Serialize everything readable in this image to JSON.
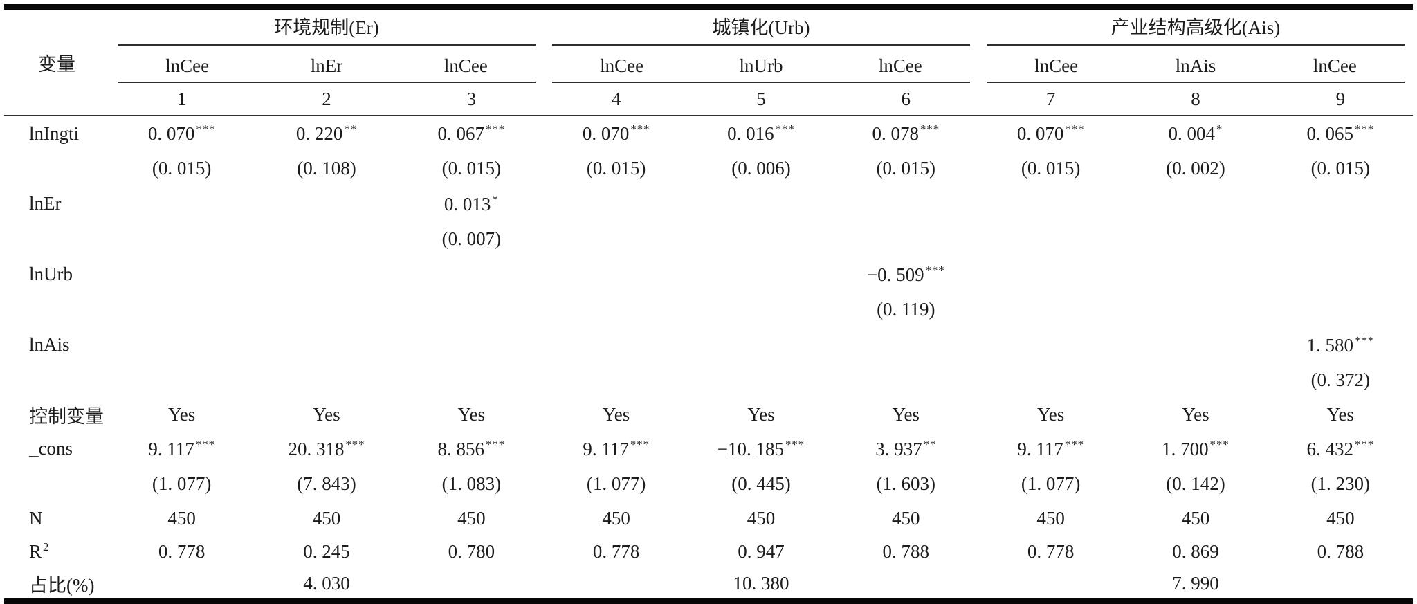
{
  "table": {
    "stub_header": "变量",
    "groups": [
      {
        "label": "环境规制(Er)",
        "dep_vars": [
          "lnCee",
          "lnEr",
          "lnCee"
        ]
      },
      {
        "label": "城镇化(Urb)",
        "dep_vars": [
          "lnCee",
          "lnUrb",
          "lnCee"
        ]
      },
      {
        "label": "产业结构高级化(Ais)",
        "dep_vars": [
          "lnCee",
          "lnAis",
          "lnCee"
        ]
      }
    ],
    "model_numbers": [
      "1",
      "2",
      "3",
      "4",
      "5",
      "6",
      "7",
      "8",
      "9"
    ],
    "rows": [
      {
        "label": "lnIngti",
        "type": "coef",
        "cells": [
          {
            "v": "0. 070",
            "s": "***"
          },
          {
            "v": "0. 220",
            "s": "**"
          },
          {
            "v": "0. 067",
            "s": "***"
          },
          {
            "v": "0. 070",
            "s": "***"
          },
          {
            "v": "0. 016",
            "s": "***"
          },
          {
            "v": "0. 078",
            "s": "***"
          },
          {
            "v": "0. 070",
            "s": "***"
          },
          {
            "v": "0. 004",
            "s": "*"
          },
          {
            "v": "0. 065",
            "s": "***"
          }
        ]
      },
      {
        "label": "",
        "type": "se",
        "cells": [
          {
            "v": "(0. 015)"
          },
          {
            "v": "(0. 108)"
          },
          {
            "v": "(0. 015)"
          },
          {
            "v": "(0. 015)"
          },
          {
            "v": "(0. 006)"
          },
          {
            "v": "(0. 015)"
          },
          {
            "v": "(0. 015)"
          },
          {
            "v": "(0. 002)"
          },
          {
            "v": "(0. 015)"
          }
        ]
      },
      {
        "label": "lnEr",
        "type": "coef",
        "cells": [
          {
            "v": ""
          },
          {
            "v": ""
          },
          {
            "v": "0. 013",
            "s": "*"
          },
          {
            "v": ""
          },
          {
            "v": ""
          },
          {
            "v": ""
          },
          {
            "v": ""
          },
          {
            "v": ""
          },
          {
            "v": ""
          }
        ]
      },
      {
        "label": "",
        "type": "se",
        "cells": [
          {
            "v": ""
          },
          {
            "v": ""
          },
          {
            "v": "(0. 007)"
          },
          {
            "v": ""
          },
          {
            "v": ""
          },
          {
            "v": ""
          },
          {
            "v": ""
          },
          {
            "v": ""
          },
          {
            "v": ""
          }
        ]
      },
      {
        "label": "lnUrb",
        "type": "coef",
        "cells": [
          {
            "v": ""
          },
          {
            "v": ""
          },
          {
            "v": ""
          },
          {
            "v": ""
          },
          {
            "v": ""
          },
          {
            "v": "−0. 509",
            "s": "***"
          },
          {
            "v": ""
          },
          {
            "v": ""
          },
          {
            "v": ""
          }
        ]
      },
      {
        "label": "",
        "type": "se",
        "cells": [
          {
            "v": ""
          },
          {
            "v": ""
          },
          {
            "v": ""
          },
          {
            "v": ""
          },
          {
            "v": ""
          },
          {
            "v": "(0. 119)"
          },
          {
            "v": ""
          },
          {
            "v": ""
          },
          {
            "v": ""
          }
        ]
      },
      {
        "label": "lnAis",
        "type": "coef",
        "cells": [
          {
            "v": ""
          },
          {
            "v": ""
          },
          {
            "v": ""
          },
          {
            "v": ""
          },
          {
            "v": ""
          },
          {
            "v": ""
          },
          {
            "v": ""
          },
          {
            "v": ""
          },
          {
            "v": "1. 580",
            "s": "***"
          }
        ]
      },
      {
        "label": "",
        "type": "se",
        "cells": [
          {
            "v": ""
          },
          {
            "v": ""
          },
          {
            "v": ""
          },
          {
            "v": ""
          },
          {
            "v": ""
          },
          {
            "v": ""
          },
          {
            "v": ""
          },
          {
            "v": ""
          },
          {
            "v": "(0. 372)"
          }
        ]
      },
      {
        "label": "控制变量",
        "type": "text",
        "cells": [
          {
            "v": "Yes"
          },
          {
            "v": "Yes"
          },
          {
            "v": "Yes"
          },
          {
            "v": "Yes"
          },
          {
            "v": "Yes"
          },
          {
            "v": "Yes"
          },
          {
            "v": "Yes"
          },
          {
            "v": "Yes"
          },
          {
            "v": "Yes"
          }
        ]
      },
      {
        "label": "_cons",
        "type": "coef",
        "cells": [
          {
            "v": "9. 117",
            "s": "***"
          },
          {
            "v": "20. 318",
            "s": "***"
          },
          {
            "v": "8. 856",
            "s": "***"
          },
          {
            "v": "9. 117",
            "s": "***"
          },
          {
            "v": "−10. 185",
            "s": "***"
          },
          {
            "v": "3. 937",
            "s": "**"
          },
          {
            "v": "9. 117",
            "s": "***"
          },
          {
            "v": "1. 700",
            "s": "***"
          },
          {
            "v": "6. 432",
            "s": "***"
          }
        ]
      },
      {
        "label": "",
        "type": "se",
        "cells": [
          {
            "v": "(1. 077)"
          },
          {
            "v": "(7. 843)"
          },
          {
            "v": "(1. 083)"
          },
          {
            "v": "(1. 077)"
          },
          {
            "v": "(0. 445)"
          },
          {
            "v": "(1. 603)"
          },
          {
            "v": "(1. 077)"
          },
          {
            "v": "(0. 142)"
          },
          {
            "v": "(1. 230)"
          }
        ]
      },
      {
        "label": "N",
        "type": "text",
        "cells": [
          {
            "v": "450"
          },
          {
            "v": "450"
          },
          {
            "v": "450"
          },
          {
            "v": "450"
          },
          {
            "v": "450"
          },
          {
            "v": "450"
          },
          {
            "v": "450"
          },
          {
            "v": "450"
          },
          {
            "v": "450"
          }
        ]
      },
      {
        "label": "R",
        "label_sup": "2",
        "type": "text",
        "cells": [
          {
            "v": "0. 778"
          },
          {
            "v": "0. 245"
          },
          {
            "v": "0. 780"
          },
          {
            "v": "0. 778"
          },
          {
            "v": "0. 947"
          },
          {
            "v": "0. 788"
          },
          {
            "v": "0. 778"
          },
          {
            "v": "0. 869"
          },
          {
            "v": "0. 788"
          }
        ]
      },
      {
        "label": "占比(%)",
        "type": "text",
        "cells": [
          {
            "v": ""
          },
          {
            "v": "4. 030"
          },
          {
            "v": ""
          },
          {
            "v": ""
          },
          {
            "v": "10. 380"
          },
          {
            "v": ""
          },
          {
            "v": ""
          },
          {
            "v": "7. 990"
          },
          {
            "v": ""
          }
        ]
      }
    ]
  },
  "colors": {
    "text": "#1c1c1c",
    "rule": "#2e2e2e",
    "heavy_border": "#070707",
    "background": "#ffffff"
  }
}
